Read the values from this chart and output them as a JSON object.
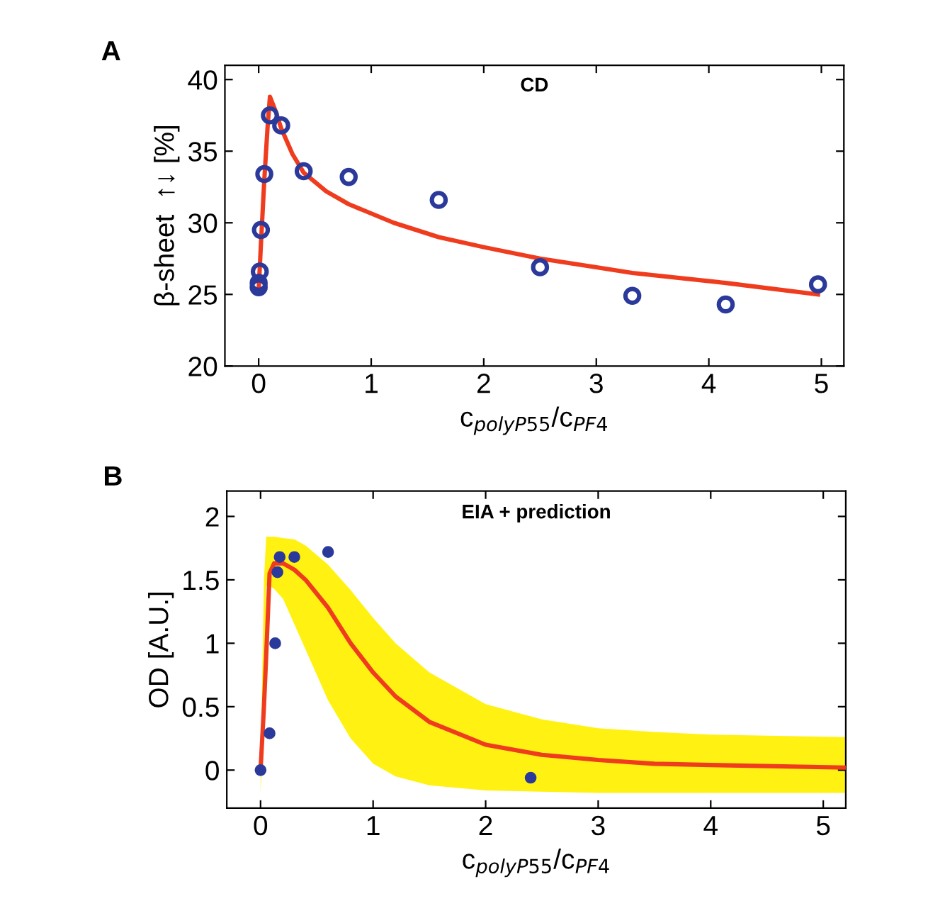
{
  "chart_data": [
    {
      "type": "scatter",
      "title": "CD",
      "xlabel": "c$_{polyP55}$/c$_{PF4}$",
      "ylabel": "β-sheet  ↑↓ [%]",
      "annotations": [
        "A"
      ],
      "xlim": [
        -0.3,
        5.2
      ],
      "ylim": [
        20,
        41
      ],
      "xticks": [
        0,
        1,
        2,
        3,
        4,
        5
      ],
      "yticks": [
        20,
        25,
        30,
        35,
        40
      ],
      "grid": false,
      "legend": false,
      "series": [
        {
          "marker": "circle",
          "color": "#2b3a9a",
          "x": [
            0,
            0,
            0.01,
            0.02,
            0.05,
            0.1,
            0.2,
            0.4,
            0.8,
            1.6,
            2.5,
            3.32,
            4.15,
            4.97
          ],
          "values": [
            25.5,
            25.8,
            26.6,
            29.5,
            33.4,
            37.5,
            36.8,
            33.6,
            33.2,
            31.6,
            26.9,
            24.9,
            24.3,
            25.7
          ]
        },
        {
          "type": "line",
          "marker": "none",
          "color": "#f03c1e",
          "x": [
            0,
            0.02,
            0.05,
            0.08,
            0.1,
            0.15,
            0.2,
            0.3,
            0.4,
            0.6,
            0.8,
            1.2,
            1.6,
            2.0,
            2.5,
            3.0,
            3.32,
            4.15,
            4.97
          ],
          "values": [
            25.3,
            28.5,
            33.0,
            36.8,
            38.8,
            37.8,
            36.6,
            34.8,
            33.5,
            32.2,
            31.3,
            30.0,
            29.0,
            28.3,
            27.5,
            26.9,
            26.5,
            25.8,
            25.0
          ]
        }
      ]
    },
    {
      "type": "scatter",
      "title": "EIA + prediction",
      "xlabel": "c$_{polyP55}$/c$_{PF4}$",
      "ylabel": "OD [A.U.]",
      "annotations": [
        "B"
      ],
      "xlim": [
        -0.3,
        5.2
      ],
      "ylim": [
        -0.3,
        2.2
      ],
      "xticks": [
        0,
        1,
        2,
        3,
        4,
        5
      ],
      "yticks": [
        0,
        0.5,
        1,
        1.5,
        2
      ],
      "grid": false,
      "legend": false,
      "series": [
        {
          "type": "line",
          "marker": "none",
          "color": "#f03c1e",
          "x": [
            0,
            0.03,
            0.05,
            0.08,
            0.12,
            0.2,
            0.3,
            0.4,
            0.6,
            0.8,
            1.0,
            1.2,
            1.5,
            2.0,
            2.5,
            3.0,
            3.5,
            4.0,
            5.2
          ],
          "values": [
            0.0,
            0.5,
            0.9,
            1.55,
            1.63,
            1.63,
            1.58,
            1.5,
            1.28,
            1.0,
            0.77,
            0.58,
            0.38,
            0.2,
            0.12,
            0.08,
            0.05,
            0.04,
            0.02
          ],
          "lower": [
            -0.18,
            0.4,
            1.45,
            1.45,
            1.43,
            1.35,
            1.15,
            0.95,
            0.55,
            0.25,
            0.05,
            -0.05,
            -0.12,
            -0.16,
            -0.17,
            -0.18,
            -0.18,
            -0.18,
            -0.18
          ],
          "upper": [
            0.0,
            1.5,
            1.84,
            1.84,
            1.84,
            1.83,
            1.82,
            1.77,
            1.62,
            1.42,
            1.2,
            1.0,
            0.77,
            0.52,
            0.4,
            0.33,
            0.3,
            0.28,
            0.26
          ]
        },
        {
          "marker": "circle",
          "color": "#2b3a9a",
          "x": [
            0,
            0.08,
            0.13,
            0.15,
            0.17,
            0.3,
            0.6,
            2.4
          ],
          "values": [
            0,
            0.29,
            1.0,
            1.56,
            1.68,
            1.68,
            1.72,
            -0.06
          ]
        }
      ]
    }
  ]
}
